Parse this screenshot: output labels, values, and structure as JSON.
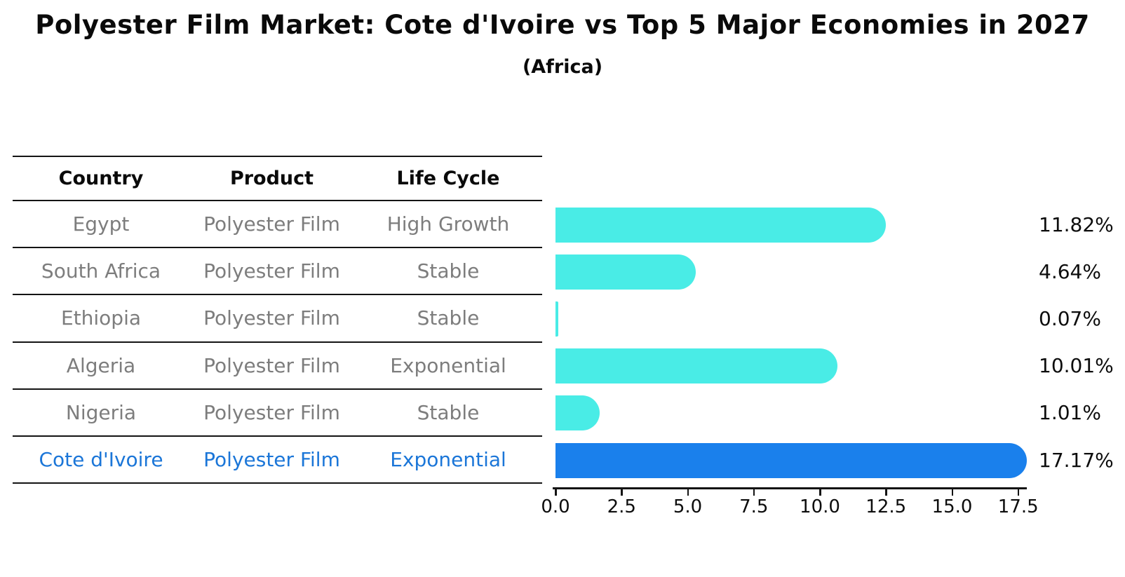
{
  "header": {
    "title": "Polyester Film Market: Cote d'Ivoire vs Top 5 Major Economies in 2027",
    "subtitle": "(Africa)"
  },
  "table": {
    "columns": [
      "Country",
      "Product",
      "Life Cycle"
    ],
    "rows": [
      {
        "country": "Egypt",
        "product": "Polyester Film",
        "life_cycle": "High Growth",
        "highlight": false
      },
      {
        "country": "South Africa",
        "product": "Polyester Film",
        "life_cycle": "Stable",
        "highlight": false
      },
      {
        "country": "Ethiopia",
        "product": "Polyester Film",
        "life_cycle": "Stable",
        "highlight": false
      },
      {
        "country": "Algeria",
        "product": "Polyester Film",
        "life_cycle": "Exponential",
        "highlight": false
      },
      {
        "country": "Nigeria",
        "product": "Polyester Film",
        "life_cycle": "Stable",
        "highlight": false
      },
      {
        "country": "Cote d'Ivoire",
        "product": "Polyester Film",
        "life_cycle": "Exponential",
        "highlight": true
      }
    ]
  },
  "chart_data": {
    "type": "bar",
    "orientation": "horizontal",
    "title": "Polyester Film Market: Cote d'Ivoire vs Top 5 Major Economies in 2027",
    "subtitle": "(Africa)",
    "categories": [
      "Egypt",
      "South Africa",
      "Ethiopia",
      "Algeria",
      "Nigeria",
      "Cote d'Ivoire"
    ],
    "values": [
      11.82,
      4.64,
      0.07,
      10.01,
      1.01,
      17.17
    ],
    "value_labels": [
      "11.82%",
      "4.64%",
      "0.07%",
      "10.01%",
      "1.01%",
      "17.17%"
    ],
    "xlim": [
      0,
      17.5
    ],
    "x_ticks": [
      "0.0",
      "2.5",
      "5.0",
      "7.5",
      "10.0",
      "12.5",
      "15.0",
      "17.5"
    ],
    "grid": false,
    "legend": false,
    "highlight_index": 5,
    "colors": {
      "bar": "#49ece6",
      "highlight_bar": "#1a80ec",
      "row_text": "#7d7d7d",
      "highlight_text": "#1b76d8",
      "axis_text": "#0d0d0d"
    }
  }
}
